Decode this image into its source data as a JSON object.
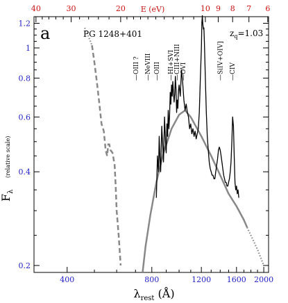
{
  "chart_data": {
    "type": "line",
    "panel_label": "a",
    "object": "PG 1248+401",
    "redshift_label": "z",
    "redshift_sub": "q",
    "redshift_value": "=1.03",
    "xlabel": "λ",
    "xlabel_sub": "rest",
    "xlabel_unit": " (Å)",
    "ylabel": "F",
    "ylabel_sub": "λ",
    "ylabel_note": "(relative scale)",
    "top_axis_title": "E  (eV)",
    "x_scale": "log",
    "y_scale": "log",
    "xlim": [
      305,
      2080
    ],
    "ylim": [
      0.19,
      1.26
    ],
    "x_ticks": [
      400,
      800,
      1200,
      1600,
      2000
    ],
    "y_ticks": [
      0.2,
      0.4,
      0.6,
      0.8,
      1,
      1.2
    ],
    "y_tick_labels": [
      "0.2",
      "0.4",
      "0.6",
      "0.8",
      "1",
      "1.2"
    ],
    "top_ticks": [
      40,
      30,
      20,
      10,
      9,
      8,
      7,
      6
    ],
    "colors": {
      "bottom_axis": "#2222cc",
      "top_axis": "#cc1111",
      "model": "#888888",
      "spectrum": "#000000"
    },
    "line_ids": [
      {
        "label": "OIII ?",
        "x": 702
      },
      {
        "label": "NeVIII",
        "x": 774
      },
      {
        "label": "OIII",
        "x": 833
      },
      {
        "label": "HI+SVI",
        "x": 933
      },
      {
        "label": "CIII+NIII",
        "x": 983
      },
      {
        "label": "OVI",
        "x": 1034
      },
      {
        "label": "SiIV+OIV]",
        "x": 1400
      },
      {
        "label": "CIV",
        "x": 1549
      }
    ],
    "series": [
      {
        "style": "dotted",
        "x": [
          462,
          470,
          480,
          490
        ],
        "y": [
          1.16,
          1.12,
          1.07,
          1.02
        ]
      },
      {
        "style": "dashed",
        "x": [
          490,
          500,
          510,
          520,
          530,
          540,
          548,
          555,
          560,
          565,
          570,
          580,
          590,
          595,
          600,
          610,
          620
        ],
        "y": [
          1.02,
          0.9,
          0.78,
          0.67,
          0.57,
          0.54,
          0.47,
          0.45,
          0.49,
          0.49,
          0.47,
          0.46,
          0.42,
          0.36,
          0.3,
          0.25,
          0.2
        ]
      },
      {
        "style": "solid-gray",
        "x": [
          742,
          760,
          790,
          830,
          880,
          940,
          1000,
          1050,
          1100,
          1200,
          1300,
          1400,
          1500,
          1600,
          1700,
          1745
        ],
        "y": [
          0.19,
          0.23,
          0.29,
          0.37,
          0.46,
          0.55,
          0.61,
          0.63,
          0.6,
          0.52,
          0.45,
          0.39,
          0.34,
          0.31,
          0.28,
          0.265
        ]
      },
      {
        "style": "dotted",
        "x": [
          1745,
          1800,
          1900,
          2000
        ],
        "y": [
          0.265,
          0.25,
          0.225,
          0.2
        ]
      },
      {
        "style": "solid-black",
        "x": [
          830,
          838,
          845,
          850,
          855,
          860,
          868,
          875,
          880,
          888,
          895,
          900,
          905,
          910,
          915,
          920,
          925,
          930,
          935,
          940,
          945,
          950,
          955,
          960,
          965,
          970,
          975,
          980,
          985,
          990,
          995,
          1000,
          1010,
          1020,
          1030,
          1040,
          1050,
          1060,
          1070,
          1080,
          1090,
          1100,
          1110,
          1120,
          1130,
          1140,
          1150,
          1160,
          1170,
          1180,
          1190,
          1200,
          1205,
          1210,
          1215,
          1220,
          1225,
          1230,
          1240,
          1250,
          1260,
          1270,
          1280,
          1290,
          1300,
          1310,
          1320,
          1330,
          1340,
          1350,
          1360,
          1370,
          1380,
          1390,
          1400,
          1410,
          1420,
          1430,
          1440,
          1450,
          1460,
          1470,
          1480,
          1490,
          1500,
          1510,
          1520,
          1530,
          1540,
          1550,
          1560,
          1570,
          1580,
          1590,
          1600,
          1610,
          1620,
          1630
        ],
        "y": [
          0.33,
          0.45,
          0.4,
          0.52,
          0.44,
          0.4,
          0.56,
          0.48,
          0.43,
          0.6,
          0.5,
          0.46,
          0.57,
          0.52,
          0.63,
          0.55,
          0.6,
          0.72,
          0.66,
          0.76,
          0.7,
          0.78,
          0.72,
          0.67,
          0.71,
          0.81,
          0.74,
          0.62,
          0.68,
          0.64,
          0.73,
          0.76,
          0.7,
          0.85,
          0.77,
          0.68,
          0.63,
          0.66,
          0.62,
          0.6,
          0.55,
          0.57,
          0.53,
          0.55,
          0.52,
          0.54,
          0.51,
          0.53,
          0.55,
          0.62,
          0.8,
          1.0,
          1.21,
          1.27,
          1.19,
          1.15,
          1.16,
          1.05,
          0.8,
          0.62,
          0.52,
          0.47,
          0.43,
          0.41,
          0.4,
          0.39,
          0.39,
          0.38,
          0.38,
          0.4,
          0.42,
          0.44,
          0.47,
          0.48,
          0.47,
          0.45,
          0.43,
          0.41,
          0.39,
          0.38,
          0.37,
          0.37,
          0.36,
          0.36,
          0.37,
          0.38,
          0.4,
          0.43,
          0.5,
          0.6,
          0.56,
          0.45,
          0.37,
          0.35,
          0.36,
          0.34,
          0.35,
          0.33
        ]
      }
    ]
  }
}
